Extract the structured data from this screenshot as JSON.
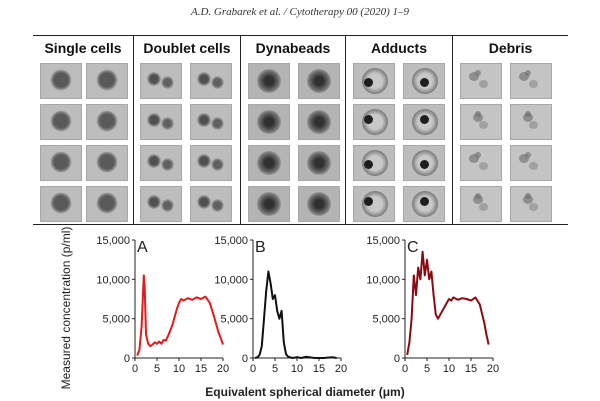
{
  "header": {
    "running_head": "A.D. Grabarek et al. / Cytotherapy 00 (2020) 1–9"
  },
  "image_panel": {
    "columns": [
      {
        "label": "Single cells"
      },
      {
        "label": "Doublet cells"
      },
      {
        "label": "Dynabeads"
      },
      {
        "label": "Adducts"
      },
      {
        "label": "Debris"
      }
    ]
  },
  "chart_data": [
    {
      "type": "line",
      "panel_label": "A",
      "color": "#e41a1c",
      "xlim": [
        0,
        20
      ],
      "ylim": [
        0,
        15000
      ],
      "xticks": [
        0,
        5,
        10,
        15,
        20
      ],
      "yticks": [
        0,
        5000,
        10000,
        15000
      ],
      "ytick_labels": [
        "0",
        "5,000",
        "10,000",
        "15,000"
      ],
      "ylabel": "Measured concentration (p/ml)",
      "x": [
        0.5,
        1.0,
        1.5,
        2.0,
        2.2,
        2.5,
        3.0,
        3.5,
        4.0,
        4.5,
        5.0,
        5.5,
        6.0,
        6.5,
        7.0,
        7.5,
        8.0,
        8.5,
        9.0,
        9.5,
        10.0,
        10.5,
        11.0,
        12.0,
        13.0,
        14.0,
        15.0,
        16.0,
        17.0,
        18.0,
        18.5,
        19.0,
        19.5,
        20.0
      ],
      "y": [
        300,
        1000,
        4000,
        10500,
        9000,
        3000,
        1800,
        1500,
        1700,
        2000,
        1800,
        2100,
        1800,
        2300,
        2200,
        2800,
        3500,
        4200,
        5200,
        6200,
        7000,
        7500,
        7300,
        7600,
        7400,
        7700,
        7500,
        7800,
        7000,
        5200,
        4200,
        3200,
        2500,
        1700
      ]
    },
    {
      "type": "line",
      "panel_label": "B",
      "color": "#111111",
      "xlim": [
        0,
        20
      ],
      "ylim": [
        0,
        15000
      ],
      "xticks": [
        0,
        5,
        10,
        15,
        20
      ],
      "yticks": [
        0,
        5000,
        10000,
        15000
      ],
      "ytick_labels": [
        "0",
        "5,000",
        "10,000",
        "15,000"
      ],
      "x": [
        0.5,
        1.0,
        1.5,
        2.0,
        2.5,
        3.0,
        3.5,
        4.0,
        4.5,
        5.0,
        5.5,
        6.0,
        6.5,
        7.0,
        7.5,
        8.0,
        9.0,
        10.0,
        11.0,
        12.0,
        14.0,
        16.0,
        18.0,
        19.0
      ],
      "y": [
        0,
        100,
        400,
        1500,
        5000,
        8500,
        11000,
        9500,
        7500,
        8000,
        6000,
        5000,
        6000,
        2000,
        500,
        150,
        0,
        100,
        0,
        150,
        0,
        0,
        100,
        0
      ]
    },
    {
      "type": "line",
      "panel_label": "C",
      "color": "#8b0a12",
      "xlim": [
        0,
        20
      ],
      "ylim": [
        0,
        15000
      ],
      "xticks": [
        0,
        5,
        10,
        15,
        20
      ],
      "yticks": [
        0,
        5000,
        10000,
        15000
      ],
      "ytick_labels": [
        "0",
        "5,000",
        "10,000",
        "15,000"
      ],
      "x": [
        0.5,
        1.0,
        1.5,
        2.0,
        2.5,
        3.0,
        3.5,
        4.0,
        4.5,
        5.0,
        5.5,
        6.0,
        6.5,
        7.0,
        7.5,
        8.0,
        8.5,
        9.0,
        9.5,
        10.0,
        10.5,
        11.0,
        12.0,
        13.0,
        14.0,
        15.0,
        16.0,
        17.0,
        18.0,
        18.5,
        19.0
      ],
      "y": [
        400,
        2000,
        5000,
        10500,
        8000,
        11500,
        10000,
        13500,
        10500,
        12500,
        10000,
        11000,
        8000,
        5500,
        5000,
        5500,
        6000,
        6500,
        7000,
        7500,
        7300,
        7700,
        7400,
        7600,
        7500,
        7300,
        7700,
        6800,
        4500,
        3000,
        1700
      ]
    }
  ],
  "axes_common": {
    "xlabel": "Equivalent spherical diameter (μm)"
  }
}
